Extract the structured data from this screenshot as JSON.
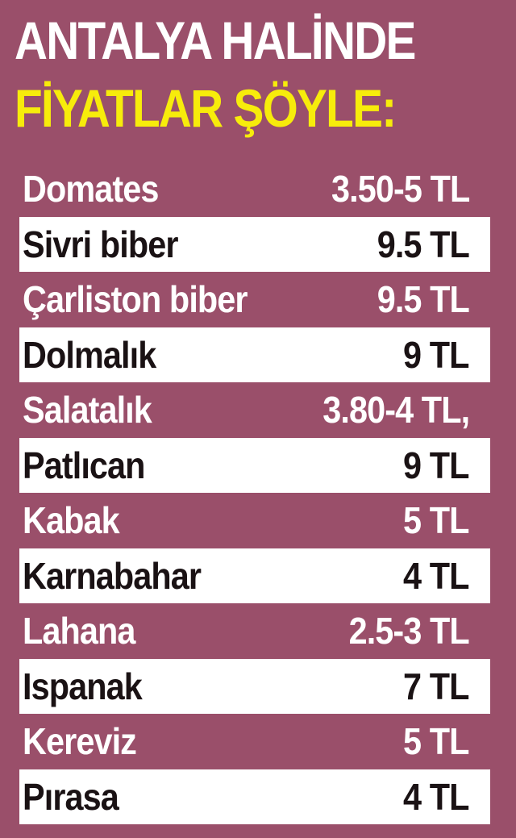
{
  "header": {
    "line1": "ANTALYA HALİNDE",
    "line2": "FİYATLAR ŞÖYLE:"
  },
  "colors": {
    "background": "#9a4f6a",
    "title_white": "#ffffff",
    "title_yellow": "#f7ec0b",
    "light_row": "#ffffff",
    "dark_text": "#1a1214"
  },
  "prices": [
    {
      "name": "Domates",
      "price": "3.50-5 TL"
    },
    {
      "name": "Sivri biber",
      "price": "9.5 TL"
    },
    {
      "name": "Çarliston biber",
      "price": "9.5 TL"
    },
    {
      "name": "Dolmalık",
      "price": "9 TL"
    },
    {
      "name": "Salatalık",
      "price": "3.80-4 TL,"
    },
    {
      "name": "Patlıcan",
      "price": "9 TL"
    },
    {
      "name": "Kabak",
      "price": "5 TL"
    },
    {
      "name": "Karnabahar",
      "price": "4 TL"
    },
    {
      "name": "Lahana",
      "price": "2.5-3 TL"
    },
    {
      "name": "Ispanak",
      "price": "7 TL"
    },
    {
      "name": "Kereviz",
      "price": "5 TL"
    },
    {
      "name": "Pırasa",
      "price": "4 TL"
    }
  ]
}
